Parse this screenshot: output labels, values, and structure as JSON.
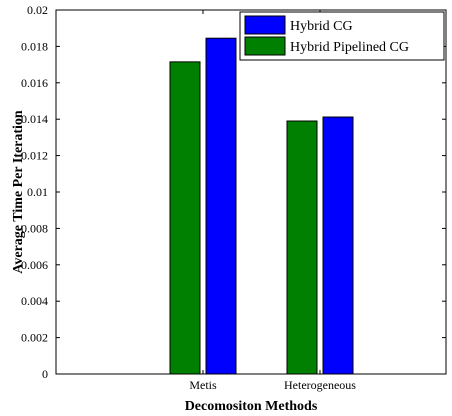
{
  "chart_data": {
    "type": "bar",
    "categories": [
      "Metis",
      "Heterogeneous"
    ],
    "series": [
      {
        "name": "Hybrid Pipelined CG",
        "color": "#008000",
        "values": [
          0.01715,
          0.0139
        ]
      },
      {
        "name": "Hybrid CG",
        "color": "#0000ff",
        "values": [
          0.01845,
          0.01412
        ]
      }
    ],
    "title": "",
    "xlabel": "Decomositon Methods",
    "ylabel": "Average Time Per Iteration",
    "ylim": [
      0,
      0.02
    ],
    "yticks": [
      "0",
      "0.002",
      "0.004",
      "0.006",
      "0.008",
      "0.01",
      "0.012",
      "0.014",
      "0.016",
      "0.018",
      "0.02"
    ],
    "grid": false,
    "legend": {
      "position": "top-right",
      "entries": [
        {
          "label": "Hybrid CG",
          "color": "#0000ff"
        },
        {
          "label": "Hybrid Pipelined CG",
          "color": "#008000"
        }
      ]
    }
  }
}
